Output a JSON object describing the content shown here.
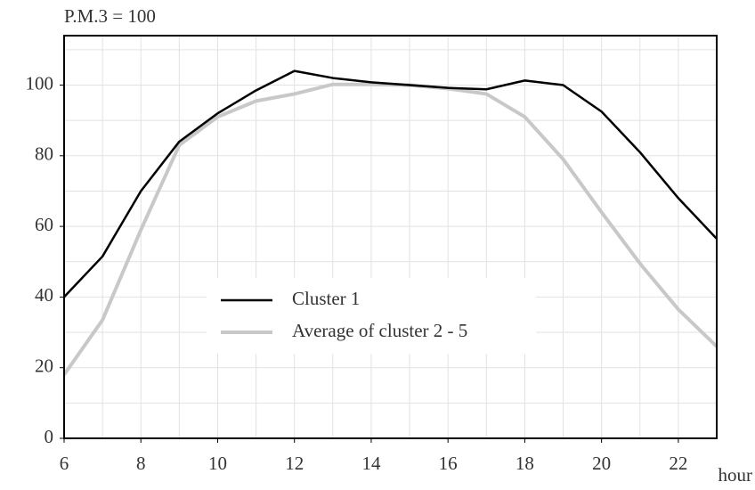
{
  "chart_data": {
    "type": "line",
    "y_label": "P.M.3 = 100",
    "x_label": "hour",
    "x": [
      6,
      7,
      8,
      9,
      10,
      11,
      12,
      13,
      14,
      15,
      16,
      17,
      18,
      19,
      20,
      21,
      22,
      23
    ],
    "series": [
      {
        "name": "Cluster 1",
        "color": "#000000",
        "width": 2.5,
        "values": [
          40,
          51.5,
          70,
          84,
          92,
          98.5,
          104,
          102,
          100.8,
          100,
          99.2,
          98.8,
          101.3,
          100,
          92.5,
          81,
          68,
          56.5
        ]
      },
      {
        "name": "Average of cluster 2 - 5",
        "color": "#c8c8c8",
        "width": 4,
        "values": [
          18,
          33.5,
          59,
          83,
          91,
          95.5,
          97.5,
          100.2,
          100.2,
          100,
          99,
          97.5,
          91,
          79,
          64,
          49.5,
          36.5,
          26
        ]
      }
    ],
    "xlim": [
      6,
      23
    ],
    "ylim": [
      0,
      114
    ],
    "xticks": [
      6,
      8,
      10,
      12,
      14,
      16,
      18,
      20,
      22
    ],
    "yticks": [
      0,
      20,
      40,
      60,
      80,
      100
    ],
    "xgrid": [
      7,
      8,
      9,
      10,
      11,
      12,
      13,
      14,
      15,
      16,
      17,
      18,
      19,
      20,
      21,
      22
    ],
    "ygrid": [
      10,
      20,
      30,
      40,
      50,
      60,
      70,
      80,
      90,
      100,
      110
    ],
    "grid": true
  }
}
